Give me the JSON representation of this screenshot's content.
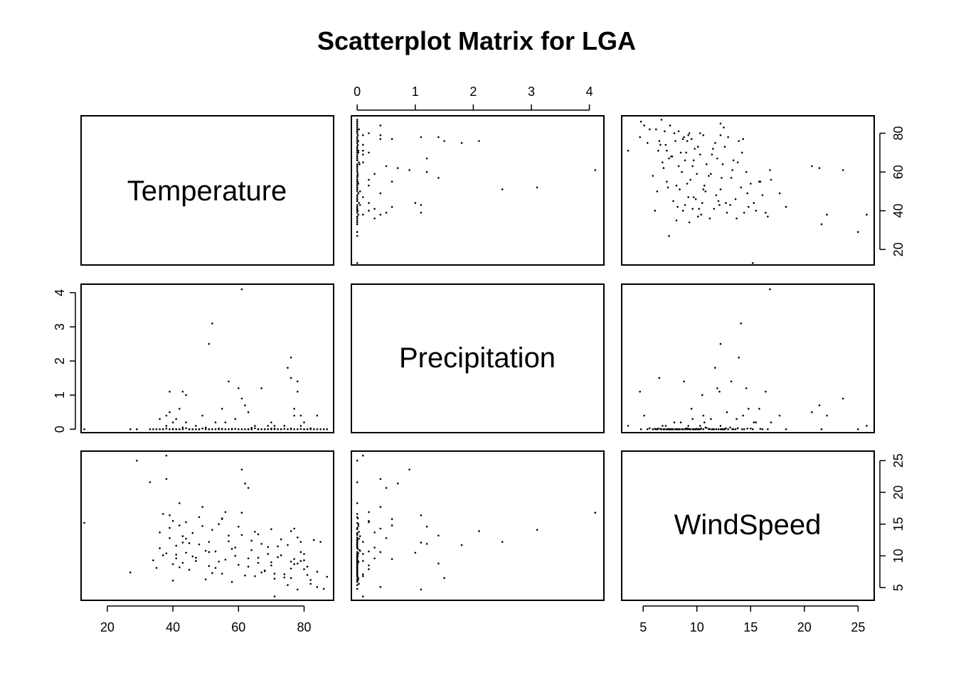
{
  "chart_data": {
    "type": "scatter-matrix",
    "title": "Scatterplot Matrix for LGA",
    "variables": [
      "Temperature",
      "Precipitation",
      "WindSpeed"
    ],
    "ranges": {
      "Temperature": [
        12,
        89
      ],
      "Precipitation": [
        -0.1,
        4.25
      ],
      "WindSpeed": [
        3,
        26.5
      ]
    },
    "ticks": {
      "Temperature": [
        20,
        40,
        60,
        80
      ],
      "Precipitation": [
        0,
        1,
        2,
        3,
        4
      ],
      "WindSpeed": [
        5,
        10,
        15,
        20,
        25
      ]
    },
    "observations": {
      "Temperature": [
        13,
        27,
        29,
        33,
        34,
        35,
        36,
        36,
        37,
        38,
        38,
        39,
        39,
        40,
        40,
        41,
        41,
        42,
        42,
        43,
        43,
        44,
        44,
        45,
        46,
        47,
        48,
        49,
        50,
        51,
        51,
        52,
        53,
        54,
        55,
        55,
        56,
        57,
        58,
        59,
        60,
        61,
        61,
        62,
        63,
        63,
        64,
        65,
        66,
        67,
        68,
        69,
        70,
        70,
        71,
        72,
        73,
        74,
        75,
        75,
        76,
        76,
        77,
        77,
        78,
        78,
        79,
        79,
        80,
        81,
        82,
        83,
        84,
        85,
        86,
        87,
        38,
        40,
        42,
        44,
        46,
        48,
        50,
        52,
        54,
        56,
        58,
        60,
        62,
        64,
        66,
        68,
        70,
        72,
        74,
        76,
        78,
        80,
        82,
        84,
        41,
        43,
        47,
        49,
        53,
        57,
        59,
        63,
        65,
        67,
        69,
        71,
        73,
        77,
        79,
        81,
        39,
        45,
        51,
        55,
        61,
        66,
        71,
        76,
        80,
        37
      ],
      "Precipitation": [
        0,
        0,
        0,
        0,
        0,
        0,
        0.3,
        0,
        0,
        0.1,
        0.4,
        1.1,
        0.5,
        0,
        0.2,
        0,
        0.3,
        0.6,
        0,
        1.1,
        0,
        1.0,
        0.2,
        0,
        0,
        0.1,
        0,
        0.4,
        0,
        2.5,
        0,
        3.1,
        0.2,
        0,
        0.6,
        0,
        0.2,
        1.4,
        0,
        0.3,
        1.2,
        4.1,
        0.9,
        0.7,
        0,
        0.5,
        0,
        0.1,
        0,
        1.2,
        0,
        0.1,
        0,
        0.2,
        0.1,
        0,
        0,
        0.1,
        0,
        1.8,
        1.5,
        2.1,
        0.6,
        0.4,
        1.4,
        1.1,
        0.1,
        0.4,
        0.2,
        0,
        0,
        0,
        0.4,
        0,
        0,
        0,
        0.02,
        0.01,
        0,
        0.03,
        0,
        0,
        0.05,
        0,
        0.02,
        0,
        0.01,
        0,
        0,
        0.04,
        0,
        0,
        0.02,
        0,
        0.01,
        0,
        0,
        0,
        0.03,
        0,
        0,
        0.05,
        0,
        0.02,
        0,
        0,
        0.01,
        0,
        0.03,
        0,
        0,
        0.02,
        0,
        0,
        0.01,
        0,
        0,
        0,
        0,
        0.01,
        0,
        0,
        0,
        0.02,
        0,
        0
      ],
      "WindSpeed": [
        15.2,
        7.4,
        25.0,
        21.6,
        9.3,
        8.1,
        13.7,
        11.2,
        10.1,
        25.8,
        22.1,
        16.4,
        12.8,
        8.7,
        15.5,
        10.2,
        9.6,
        14.8,
        18.3,
        12.1,
        8.9,
        10.5,
        15.3,
        7.8,
        13.6,
        9.2,
        11.8,
        17.7,
        6.3,
        12.2,
        8.4,
        14.1,
        10.7,
        9.1,
        15.8,
        7.2,
        16.9,
        13.2,
        5.9,
        11.3,
        14.6,
        16.8,
        23.6,
        21.4,
        8.3,
        20.7,
        12.4,
        6.8,
        9.7,
        11.9,
        7.6,
        10.3,
        14.2,
        8.5,
        3.6,
        9.8,
        12.6,
        7.1,
        5.4,
        11.7,
        6.5,
        13.9,
        9.5,
        14.3,
        8.8,
        4.7,
        12.2,
        10.6,
        7.9,
        8.3,
        6.2,
        12.5,
        5.1,
        12.2,
        4.8,
        6.7,
        10.4,
        6.1,
        8.2,
        12.7,
        9.9,
        16.1,
        10.8,
        7.3,
        15.0,
        9.4,
        11.1,
        8.6,
        6.9,
        10.9,
        13.4,
        7.7,
        9.0,
        11.5,
        6.6,
        8.0,
        12.9,
        9.3,
        5.6,
        7.5,
        11.6,
        13.1,
        9.7,
        14.7,
        8.1,
        12.3,
        10.0,
        9.6,
        13.8,
        7.4,
        11.4,
        6.4,
        10.1,
        8.7,
        9.2,
        7.0,
        14.4,
        12.0,
        10.6,
        15.9,
        13.3,
        8.9,
        7.2,
        9.1,
        10.3,
        16.6
      ]
    }
  }
}
